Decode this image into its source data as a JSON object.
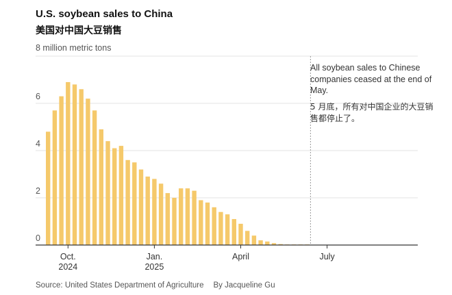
{
  "header": {
    "title": "U.S. soybean sales to China",
    "subtitle": "美国对中国大豆销售"
  },
  "annotation": {
    "en": "All soybean sales to Chinese companies ceased at the end of May.",
    "zh": "5 月底，所有对中国企业的大豆销售都停止了。"
  },
  "footer": {
    "source": "Source: United States Department of Agriculture",
    "byline": "By Jacqueline Gu"
  },
  "colors": {
    "bar": "#f5c96b",
    "grid": "#e3e3e3",
    "axis": "#333333",
    "dashed_line": "#9a9a9a"
  },
  "chart_data": {
    "type": "bar",
    "ylabel": "8 million metric tons",
    "ylim": [
      0,
      8
    ],
    "yticks": [
      0,
      2,
      4,
      6
    ],
    "grid": true,
    "x_tick_labels": [
      {
        "index": 3,
        "line1": "Oct.",
        "line2": "2024"
      },
      {
        "index": 16,
        "line1": "Jan.",
        "line2": "2025"
      },
      {
        "index": 29,
        "line1": "April",
        "line2": ""
      },
      {
        "index": 42,
        "line1": "July",
        "line2": ""
      }
    ],
    "values": [
      4.8,
      5.7,
      6.3,
      6.9,
      6.8,
      6.6,
      6.2,
      5.7,
      4.9,
      4.4,
      4.1,
      4.2,
      3.6,
      3.5,
      3.2,
      2.9,
      2.8,
      2.6,
      2.2,
      2.0,
      2.4,
      2.4,
      2.3,
      1.9,
      1.8,
      1.6,
      1.4,
      1.3,
      1.1,
      0.9,
      0.6,
      0.4,
      0.2,
      0.15,
      0.08,
      0.04,
      0.02,
      0.02,
      0.02,
      0.01
    ],
    "total_periods": 55,
    "annotation_line_index": 40
  }
}
